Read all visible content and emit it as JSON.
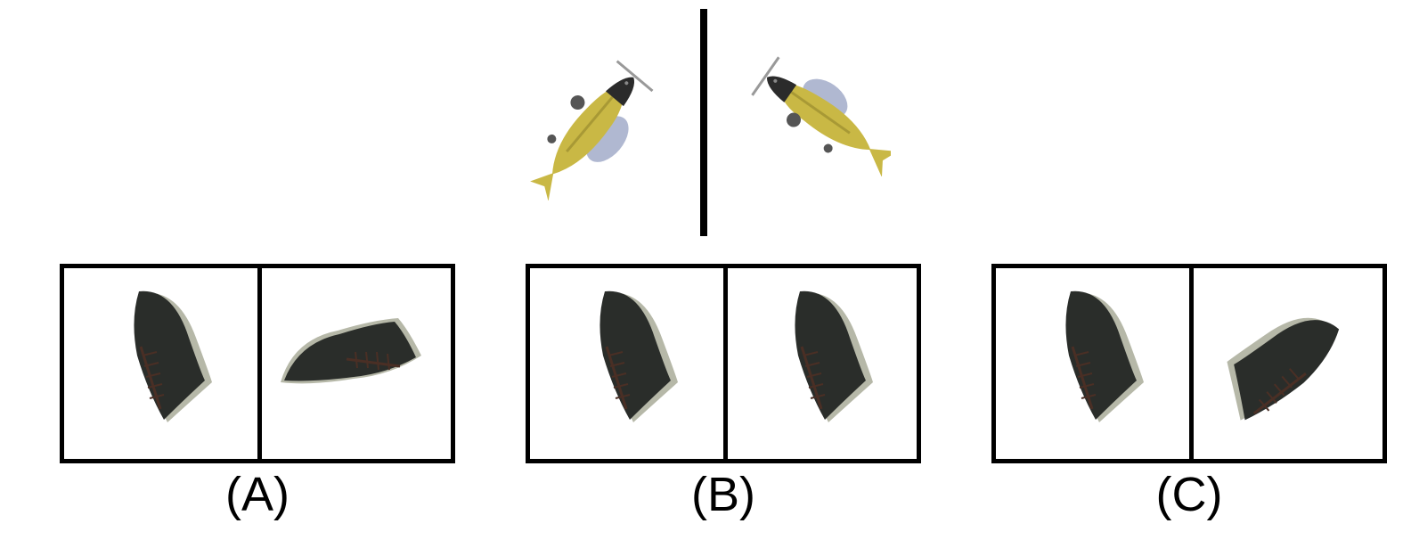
{
  "example": {
    "object": "yellow-fish-with-propeller",
    "left_view": "fish-pointing-upper-right",
    "right_view": "fish-pointing-upper-left-mirrored"
  },
  "options": [
    {
      "label": "(A)",
      "left_view": "boot-upright",
      "right_view": "boot-lying-sideways"
    },
    {
      "label": "(B)",
      "left_view": "boot-upright",
      "right_view": "boot-upright"
    },
    {
      "label": "(C)",
      "left_view": "boot-upright",
      "right_view": "boot-tilted-flipped"
    }
  ],
  "colors": {
    "border": "#000000",
    "fish_body": "#c9b845",
    "fish_head": "#2b2b2b",
    "fish_fin": "#a7b0cc",
    "boot_upper": "#2a2d2a",
    "boot_sole": "#b6b8a8",
    "boot_lace": "#4a2f25"
  }
}
